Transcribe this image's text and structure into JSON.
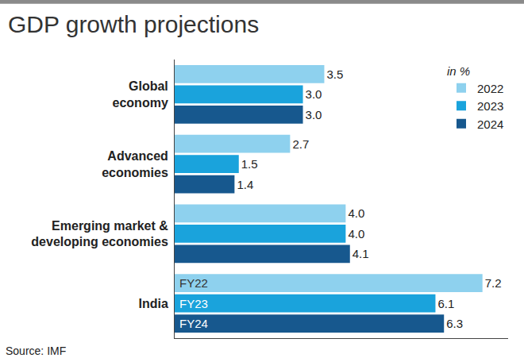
{
  "chart_data": {
    "type": "bar",
    "title": "GDP growth projections",
    "source": "Source: IMF",
    "legend_title": "in %",
    "orientation": "horizontal",
    "categories": [
      "Global economy",
      "Advanced economies",
      "Emerging market & developing economies",
      "India"
    ],
    "series": [
      {
        "name": "2022",
        "color": "#8ed1ee",
        "values": [
          3.5,
          2.7,
          4.0,
          7.2
        ],
        "value_labels": [
          "3.5",
          "2.7",
          "4.0",
          "7.2"
        ]
      },
      {
        "name": "2023",
        "color": "#1aa3dc",
        "values": [
          3.0,
          1.5,
          4.0,
          6.1
        ],
        "value_labels": [
          "3.0",
          "1.5",
          "4.0",
          "6.1"
        ]
      },
      {
        "name": "2024",
        "color": "#17588e",
        "values": [
          3.0,
          1.4,
          4.1,
          6.3
        ],
        "value_labels": [
          "3.0",
          "1.4",
          "4.1",
          "6.3"
        ]
      }
    ],
    "annotations": [
      {
        "text": "FY22",
        "category": "India",
        "series": "2022"
      },
      {
        "text": "FY23",
        "category": "India",
        "series": "2023"
      },
      {
        "text": "FY24",
        "category": "India",
        "series": "2024"
      }
    ],
    "xlim": [
      0,
      7.8
    ],
    "data_labels": true,
    "legend": "top right",
    "grid": false,
    "tick_labels": "y"
  }
}
